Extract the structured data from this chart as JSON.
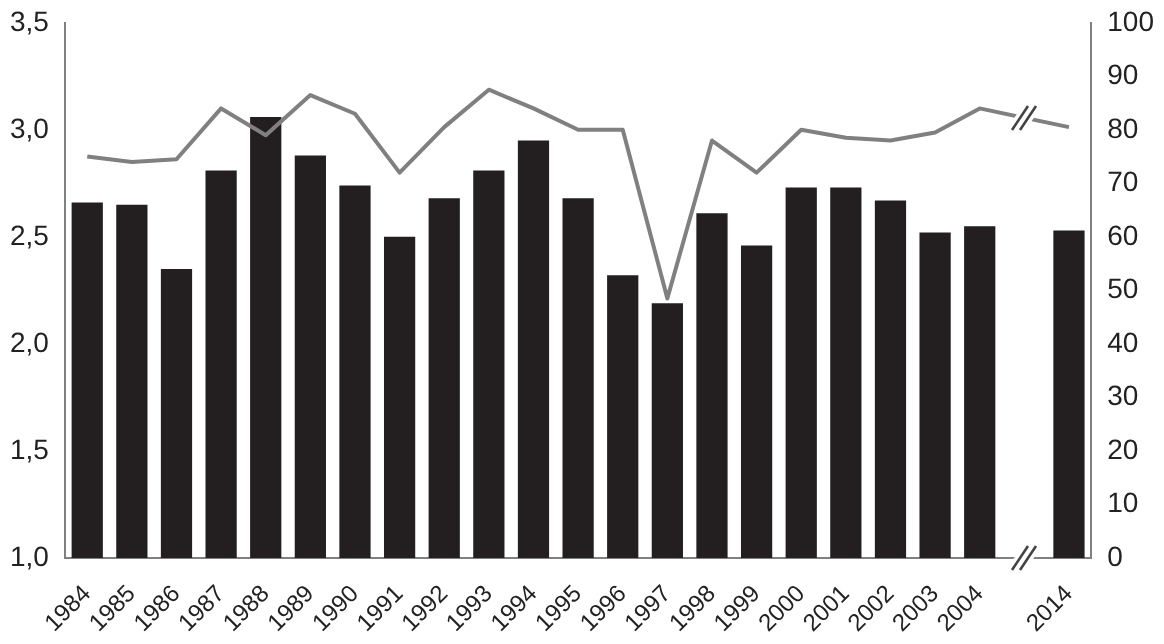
{
  "chart_data": {
    "type": "bar",
    "categories": [
      "1984",
      "1985",
      "1986",
      "1987",
      "1988",
      "1989",
      "1990",
      "1991",
      "1992",
      "1993",
      "1994",
      "1995",
      "1996",
      "1997",
      "1998",
      "1999",
      "2000",
      "2001",
      "2002",
      "2003",
      "2004",
      null,
      "2014"
    ],
    "series": [
      {
        "color": "#231f20",
        "values": [
          2.66,
          2.65,
          2.35,
          2.81,
          3.06,
          2.88,
          2.74,
          2.5,
          2.68,
          2.81,
          2.95,
          2.68,
          2.32,
          2.19,
          2.61,
          2.46,
          2.73,
          2.73,
          2.67,
          2.52,
          2.55,
          null,
          2.53
        ]
      },
      {
        "type": "line",
        "axis": "y2",
        "color": "#808080",
        "values": [
          75,
          74,
          74.5,
          84,
          79,
          86.5,
          83,
          72,
          80.5,
          87.5,
          84,
          80,
          80,
          48.5,
          78,
          72,
          80,
          78.5,
          78,
          79.5,
          84,
          null,
          80.5
        ]
      }
    ],
    "ylim": [
      1,
      3.5
    ],
    "yticks": [
      {
        "value": 1,
        "label": "1,0"
      },
      {
        "value": 1.5,
        "label": "1,5"
      },
      {
        "value": 2,
        "label": "2,0"
      },
      {
        "value": 2.5,
        "label": "2,5"
      },
      {
        "value": 3,
        "label": "3,0"
      },
      {
        "value": 3.5,
        "label": "3,5"
      }
    ],
    "y2lim": [
      0,
      100
    ],
    "y2ticks": [
      0,
      10,
      20,
      30,
      40,
      50,
      60,
      70,
      80,
      90,
      100
    ],
    "grid": false,
    "legend": false,
    "marker": "none",
    "line_style": "solid"
  }
}
